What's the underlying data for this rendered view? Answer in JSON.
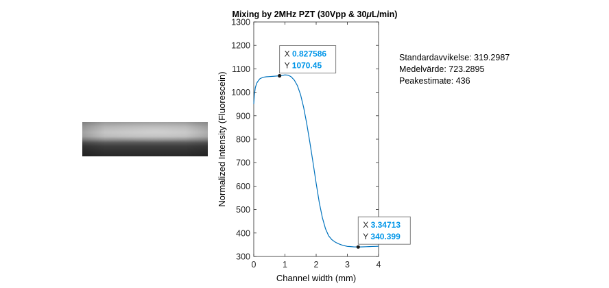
{
  "chart_data": {
    "type": "line",
    "title_prefix": "Mixing by 2MHz PZT (30Vpp & 30",
    "title_mu": "μ",
    "title_suffix": "L/min)",
    "xlabel": "Channel width (mm)",
    "ylabel": "Normalized Intensity (Fluorescein)",
    "xlim": [
      0,
      4
    ],
    "ylim": [
      300,
      1300
    ],
    "xticks": [
      "0",
      "1",
      "2",
      "3",
      "4"
    ],
    "yticks": [
      "300",
      "400",
      "500",
      "600",
      "700",
      "800",
      "900",
      "1000",
      "1100",
      "1200",
      "1300"
    ],
    "line_color": "#0072bd",
    "x": [
      0,
      0.02,
      0.05,
      0.1,
      0.15,
      0.2,
      0.3,
      0.4,
      0.5,
      0.6,
      0.7,
      0.8,
      0.9,
      1.0,
      1.1,
      1.2,
      1.3,
      1.4,
      1.5,
      1.6,
      1.7,
      1.8,
      1.9,
      2.0,
      2.1,
      2.2,
      2.3,
      2.4,
      2.5,
      2.6,
      2.7,
      2.8,
      2.9,
      3.0,
      3.1,
      3.2,
      3.3,
      3.4,
      3.5,
      3.6,
      3.7,
      3.8,
      3.9,
      4.0
    ],
    "y": [
      950,
      990,
      1020,
      1040,
      1050,
      1058,
      1064,
      1066,
      1067,
      1068,
      1069,
      1070,
      1072,
      1074,
      1073,
      1066,
      1052,
      1028,
      990,
      935,
      865,
      785,
      700,
      612,
      530,
      465,
      418,
      388,
      372,
      362,
      355,
      350,
      346,
      343,
      342,
      341,
      340.5,
      340.5,
      341,
      341.5,
      342,
      342.5,
      343,
      343.5
    ],
    "datatips": [
      {
        "x_label": "X",
        "x_value": "0.827586",
        "y_label": "Y",
        "y_value": "1070.45",
        "x": 0.827586,
        "y": 1070.45
      },
      {
        "x_label": "X",
        "x_value": "3.34713",
        "y_label": "Y",
        "y_value": "340.399",
        "x": 3.34713,
        "y": 340.399
      }
    ]
  },
  "stats": {
    "std": "Standardavvikelse: 319.2987",
    "mean": "Medelvärde: 723.2895",
    "peak": "Peakestimate: 436"
  },
  "colors": {
    "datatip_value": "#0095e8",
    "marker": "#1a1a1a"
  }
}
